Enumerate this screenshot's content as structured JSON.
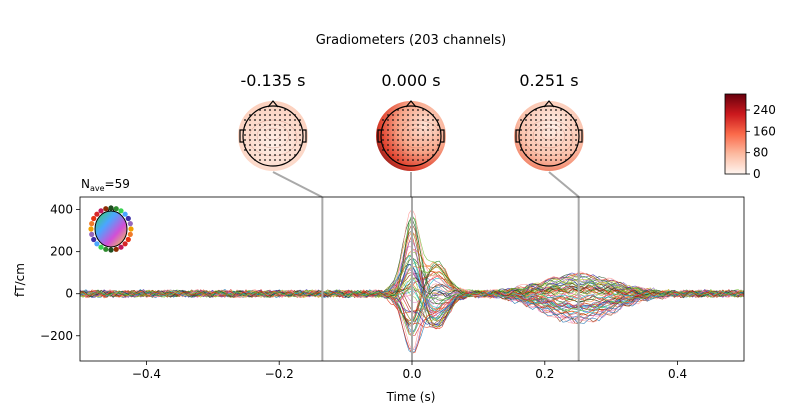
{
  "chart_data": {
    "type": "line",
    "title": "Gradiometers (203 channels)",
    "nave_label": "N",
    "nave_sub": "ave",
    "nave_value": "=59",
    "xlabel": "Time (s)",
    "ylabel": "fT/cm",
    "xlim": [
      -0.5,
      0.5
    ],
    "ylim": [
      -320,
      460
    ],
    "xticks": [
      -0.4,
      -0.2,
      0.0,
      0.2,
      0.4
    ],
    "xtick_labels": [
      "−0.4",
      "−0.2",
      "0.0",
      "0.2",
      "0.4"
    ],
    "yticks": [
      -200,
      0,
      200,
      400
    ],
    "ytick_labels": [
      "−200",
      "0",
      "200",
      "400"
    ],
    "n_channels": 203,
    "topomap_times": [
      -0.135,
      0.0,
      0.251
    ],
    "topomap_labels": [
      "-0.135 s",
      "0.000 s",
      "0.251 s"
    ],
    "colorbar": {
      "range": [
        0,
        300
      ],
      "ticks": [
        0,
        80,
        160,
        240
      ],
      "tick_labels": [
        "0",
        "80",
        "160",
        "240"
      ],
      "colors": [
        "#fff5f0",
        "#fcbba1",
        "#fb6a4a",
        "#cb181d",
        "#67000d"
      ]
    },
    "components": [
      {
        "t": 0.0,
        "w": 0.012,
        "amp_min": -280,
        "amp_max": 410
      },
      {
        "t": -0.02,
        "w": 0.01,
        "amp_min": -60,
        "amp_max": 60
      },
      {
        "t": 0.035,
        "w": 0.018,
        "amp_min": -170,
        "amp_max": 150
      },
      {
        "t": 0.25,
        "w": 0.055,
        "amp_min": -140,
        "amp_max": 90
      }
    ],
    "colors": [
      "#1f4e1f",
      "#2e8b2e",
      "#7cc243",
      "#e63312",
      "#f07b2a",
      "#d62728",
      "#9467bd",
      "#3d2fa8",
      "#8c2d04",
      "#e377c2",
      "#17becf",
      "#bcbd22",
      "#1f77b4",
      "#ff9896"
    ]
  }
}
